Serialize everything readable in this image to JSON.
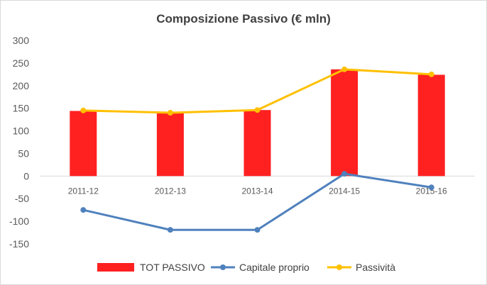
{
  "chart_data": {
    "type": "bar",
    "title": "Composizione Passivo (€ mln)",
    "categories": [
      "2011-12",
      "2012-13",
      "2013-14",
      "2014-15",
      "2015-16"
    ],
    "series": [
      {
        "name": "TOT PASSIVO",
        "type": "bar",
        "color": "#ff2020",
        "values": [
          144,
          140,
          146,
          236,
          224
        ]
      },
      {
        "name": "Capitale proprio",
        "type": "line",
        "color": "#4f81bd",
        "values": [
          -75,
          -119,
          -119,
          5,
          -25
        ]
      },
      {
        "name": "Passività",
        "type": "line",
        "color": "#ffc000",
        "values": [
          145,
          140,
          146,
          236,
          225
        ]
      }
    ],
    "ylim": [
      -150,
      300
    ],
    "yticks": [
      300,
      250,
      200,
      150,
      100,
      50,
      0,
      -50,
      -100,
      -150
    ],
    "grid": false,
    "legend": "bottom"
  }
}
